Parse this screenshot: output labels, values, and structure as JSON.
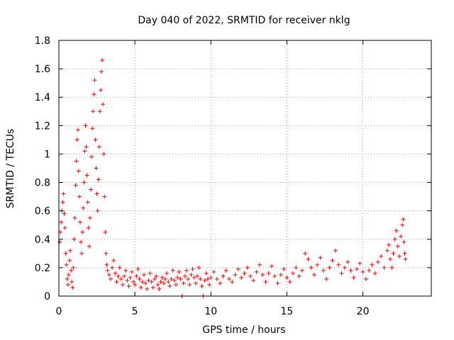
{
  "chart_data": {
    "type": "scatter",
    "title": "Day 040 of 2022, SRMTID for receiver nklg",
    "xlabel": "GPS time / hours",
    "ylabel": "SRMTID / TECUs",
    "xlim": [
      0,
      24.5
    ],
    "ylim": [
      0,
      1.8
    ],
    "xticks": [
      0,
      5,
      10,
      15,
      20
    ],
    "xtick_labels": [
      "0",
      "5",
      "10",
      "15",
      "20"
    ],
    "yticks": [
      0,
      0.2,
      0.4,
      0.6,
      0.8,
      1.0,
      1.2,
      1.4,
      1.6,
      1.8
    ],
    "ytick_labels": [
      "0",
      "0.2",
      "0.4",
      "0.6",
      "0.8",
      "1",
      "1.2",
      "1.4",
      "1.6",
      "1.8"
    ],
    "grid": true,
    "marker": "+",
    "color": "#ff0000",
    "series": [
      {
        "name": "SRMTID",
        "points": [
          [
            0.05,
            0.38
          ],
          [
            0.1,
            0.45
          ],
          [
            0.15,
            0.52
          ],
          [
            0.2,
            0.6
          ],
          [
            0.25,
            0.66
          ],
          [
            0.3,
            0.72
          ],
          [
            0.35,
            0.58
          ],
          [
            0.4,
            0.48
          ],
          [
            0.45,
            0.3
          ],
          [
            0.5,
            0.22
          ],
          [
            0.55,
            0.12
          ],
          [
            0.6,
            0.08
          ],
          [
            0.65,
            0.15
          ],
          [
            0.7,
            0.25
          ],
          [
            0.75,
            0.32
          ],
          [
            0.8,
            0.18
          ],
          [
            0.85,
            0.1
          ],
          [
            0.9,
            0.06
          ],
          [
            0.95,
            0.2
          ],
          [
            1.0,
            0.4
          ],
          [
            1.05,
            0.55
          ],
          [
            1.1,
            0.78
          ],
          [
            1.15,
            0.95
          ],
          [
            1.2,
            1.1
          ],
          [
            1.25,
            1.17
          ],
          [
            1.3,
            0.88
          ],
          [
            1.35,
            0.7
          ],
          [
            1.4,
            0.52
          ],
          [
            1.45,
            0.38
          ],
          [
            1.5,
            0.3
          ],
          [
            1.55,
            0.45
          ],
          [
            1.6,
            0.62
          ],
          [
            1.65,
            0.8
          ],
          [
            1.7,
            1.02
          ],
          [
            1.75,
            1.2
          ],
          [
            1.8,
            1.05
          ],
          [
            1.85,
            0.85
          ],
          [
            1.9,
            0.66
          ],
          [
            1.95,
            0.48
          ],
          [
            2.0,
            0.35
          ],
          [
            2.05,
            0.55
          ],
          [
            2.1,
            0.75
          ],
          [
            2.15,
            0.98
          ],
          [
            2.2,
            1.18
          ],
          [
            2.25,
            1.3
          ],
          [
            2.3,
            1.42
          ],
          [
            2.35,
            1.52
          ],
          [
            2.4,
            1.1
          ],
          [
            2.45,
            0.9
          ],
          [
            2.5,
            0.72
          ],
          [
            2.55,
            0.6
          ],
          [
            2.6,
            0.82
          ],
          [
            2.65,
            1.05
          ],
          [
            2.7,
            1.3
          ],
          [
            2.75,
            1.45
          ],
          [
            2.8,
            1.58
          ],
          [
            2.85,
            1.66
          ],
          [
            2.9,
            1.35
          ],
          [
            2.95,
            1.0
          ],
          [
            3.0,
            0.7
          ],
          [
            3.05,
            0.45
          ],
          [
            3.1,
            0.3
          ],
          [
            3.15,
            0.22
          ],
          [
            3.2,
            0.18
          ],
          [
            3.3,
            0.15
          ],
          [
            3.4,
            0.12
          ],
          [
            3.5,
            0.2
          ],
          [
            3.6,
            0.25
          ],
          [
            3.7,
            0.16
          ],
          [
            3.8,
            0.1
          ],
          [
            3.9,
            0.14
          ],
          [
            4.0,
            0.2
          ],
          [
            4.1,
            0.12
          ],
          [
            4.2,
            0.08
          ],
          [
            4.3,
            0.14
          ],
          [
            4.4,
            0.18
          ],
          [
            4.5,
            0.11
          ],
          [
            4.6,
            0.07
          ],
          [
            4.7,
            0.13
          ],
          [
            4.8,
            0.17
          ],
          [
            4.9,
            0.1
          ],
          [
            5.0,
            0.08
          ],
          [
            5.1,
            0.14
          ],
          [
            5.2,
            0.19
          ],
          [
            5.3,
            0.12
          ],
          [
            5.4,
            0.06
          ],
          [
            5.5,
            0.1
          ],
          [
            5.6,
            0.15
          ],
          [
            5.7,
            0.09
          ],
          [
            5.8,
            0.05
          ],
          [
            5.9,
            0.11
          ],
          [
            6.0,
            0.16
          ],
          [
            6.1,
            0.1
          ],
          [
            6.2,
            0.06
          ],
          [
            6.3,
            0.12
          ],
          [
            6.4,
            0.14
          ],
          [
            6.5,
            0.08
          ],
          [
            6.6,
            0.05
          ],
          [
            6.7,
            0.1
          ],
          [
            6.8,
            0.13
          ],
          [
            6.9,
            0.09
          ],
          [
            7.0,
            0.12
          ],
          [
            7.1,
            0.16
          ],
          [
            7.2,
            0.1
          ],
          [
            7.3,
            0.07
          ],
          [
            7.4,
            0.12
          ],
          [
            7.5,
            0.18
          ],
          [
            7.6,
            0.11
          ],
          [
            7.7,
            0.08
          ],
          [
            7.8,
            0.13
          ],
          [
            7.9,
            0.17
          ],
          [
            8.0,
            0.12
          ],
          [
            8.1,
            0.0
          ],
          [
            8.2,
            0.09
          ],
          [
            8.3,
            0.14
          ],
          [
            8.4,
            0.18
          ],
          [
            8.5,
            0.12
          ],
          [
            8.6,
            0.08
          ],
          [
            8.7,
            0.15
          ],
          [
            8.8,
            0.19
          ],
          [
            8.9,
            0.13
          ],
          [
            9.0,
            0.09
          ],
          [
            9.1,
            0.14
          ],
          [
            9.2,
            0.2
          ],
          [
            9.3,
            0.12
          ],
          [
            9.4,
            0.07
          ],
          [
            9.5,
            0.0
          ],
          [
            9.6,
            0.11
          ],
          [
            9.7,
            0.16
          ],
          [
            9.8,
            0.12
          ],
          [
            9.9,
            0.08
          ],
          [
            10.0,
            0.13
          ],
          [
            10.2,
            0.17
          ],
          [
            10.4,
            0.12
          ],
          [
            10.6,
            0.09
          ],
          [
            10.8,
            0.14
          ],
          [
            11.0,
            0.18
          ],
          [
            11.2,
            0.12
          ],
          [
            11.4,
            0.1
          ],
          [
            11.6,
            0.15
          ],
          [
            11.8,
            0.19
          ],
          [
            12.0,
            0.13
          ],
          [
            12.2,
            0.16
          ],
          [
            12.4,
            0.2
          ],
          [
            12.6,
            0.14
          ],
          [
            12.8,
            0.11
          ],
          [
            13.0,
            0.17
          ],
          [
            13.2,
            0.22
          ],
          [
            13.4,
            0.15
          ],
          [
            13.6,
            0.1
          ],
          [
            13.8,
            0.16
          ],
          [
            14.0,
            0.21
          ],
          [
            14.2,
            0.14
          ],
          [
            14.4,
            0.09
          ],
          [
            14.6,
            0.15
          ],
          [
            14.8,
            0.19
          ],
          [
            15.0,
            0.13
          ],
          [
            15.2,
            0.1
          ],
          [
            15.4,
            0.16
          ],
          [
            15.6,
            0.2
          ],
          [
            15.8,
            0.14
          ],
          [
            16.0,
            0.18
          ],
          [
            16.2,
            0.3
          ],
          [
            16.4,
            0.26
          ],
          [
            16.6,
            0.2
          ],
          [
            16.8,
            0.15
          ],
          [
            17.0,
            0.22
          ],
          [
            17.2,
            0.27
          ],
          [
            17.4,
            0.18
          ],
          [
            17.6,
            0.12
          ],
          [
            17.8,
            0.2
          ],
          [
            18.0,
            0.25
          ],
          [
            18.2,
            0.32
          ],
          [
            18.4,
            0.22
          ],
          [
            18.6,
            0.16
          ],
          [
            18.8,
            0.2
          ],
          [
            19.0,
            0.24
          ],
          [
            19.2,
            0.18
          ],
          [
            19.4,
            0.13
          ],
          [
            19.6,
            0.19
          ],
          [
            19.8,
            0.23
          ],
          [
            20.0,
            0.17
          ],
          [
            20.2,
            0.12
          ],
          [
            20.4,
            0.18
          ],
          [
            20.6,
            0.22
          ],
          [
            20.8,
            0.16
          ],
          [
            21.0,
            0.24
          ],
          [
            21.2,
            0.28
          ],
          [
            21.4,
            0.2
          ],
          [
            21.6,
            0.32
          ],
          [
            21.7,
            0.36
          ],
          [
            21.8,
            0.26
          ],
          [
            21.9,
            0.2
          ],
          [
            22.0,
            0.3
          ],
          [
            22.1,
            0.4
          ],
          [
            22.2,
            0.46
          ],
          [
            22.3,
            0.35
          ],
          [
            22.4,
            0.28
          ],
          [
            22.5,
            0.42
          ],
          [
            22.6,
            0.5
          ],
          [
            22.65,
            0.54
          ],
          [
            22.7,
            0.38
          ],
          [
            22.75,
            0.3
          ],
          [
            22.8,
            0.26
          ]
        ]
      }
    ]
  }
}
